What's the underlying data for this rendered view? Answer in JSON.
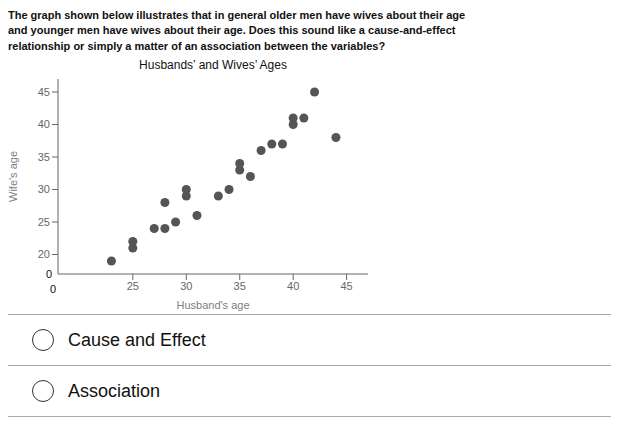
{
  "chart_data": {
    "type": "scatter",
    "title": "Husbands’ and Wives’ Ages",
    "subtitle": "The graph shown below illustrates that in general older men have wives about their age\nand younger men have wives about their age. Does this sound like a cause-and-effect\nrelationship or simply a matter of an association between the variables?",
    "x_label": "Husband's age",
    "y_label": "Wife's age",
    "x": [
      23,
      25,
      25,
      27,
      28,
      28,
      29,
      30,
      30,
      31,
      33,
      34,
      35,
      35,
      36,
      37,
      38,
      39,
      40,
      40,
      41,
      42,
      44
    ],
    "values": [
      19,
      21,
      22,
      24,
      24,
      28,
      25,
      29,
      30,
      26,
      29,
      30,
      34,
      33,
      32,
      36,
      37,
      37,
      40,
      41,
      41,
      45,
      38
    ],
    "color": "#555555",
    "xlim": [
      18,
      47
    ],
    "ylim": [
      17,
      47
    ],
    "xticks": [
      25,
      30,
      35,
      40,
      45
    ],
    "yticks": [
      20,
      25,
      30,
      35,
      40,
      45
    ],
    "grid": false,
    "annotations": [
      "0",
      "0",
      "Cause and Effect",
      "Association"
    ]
  }
}
